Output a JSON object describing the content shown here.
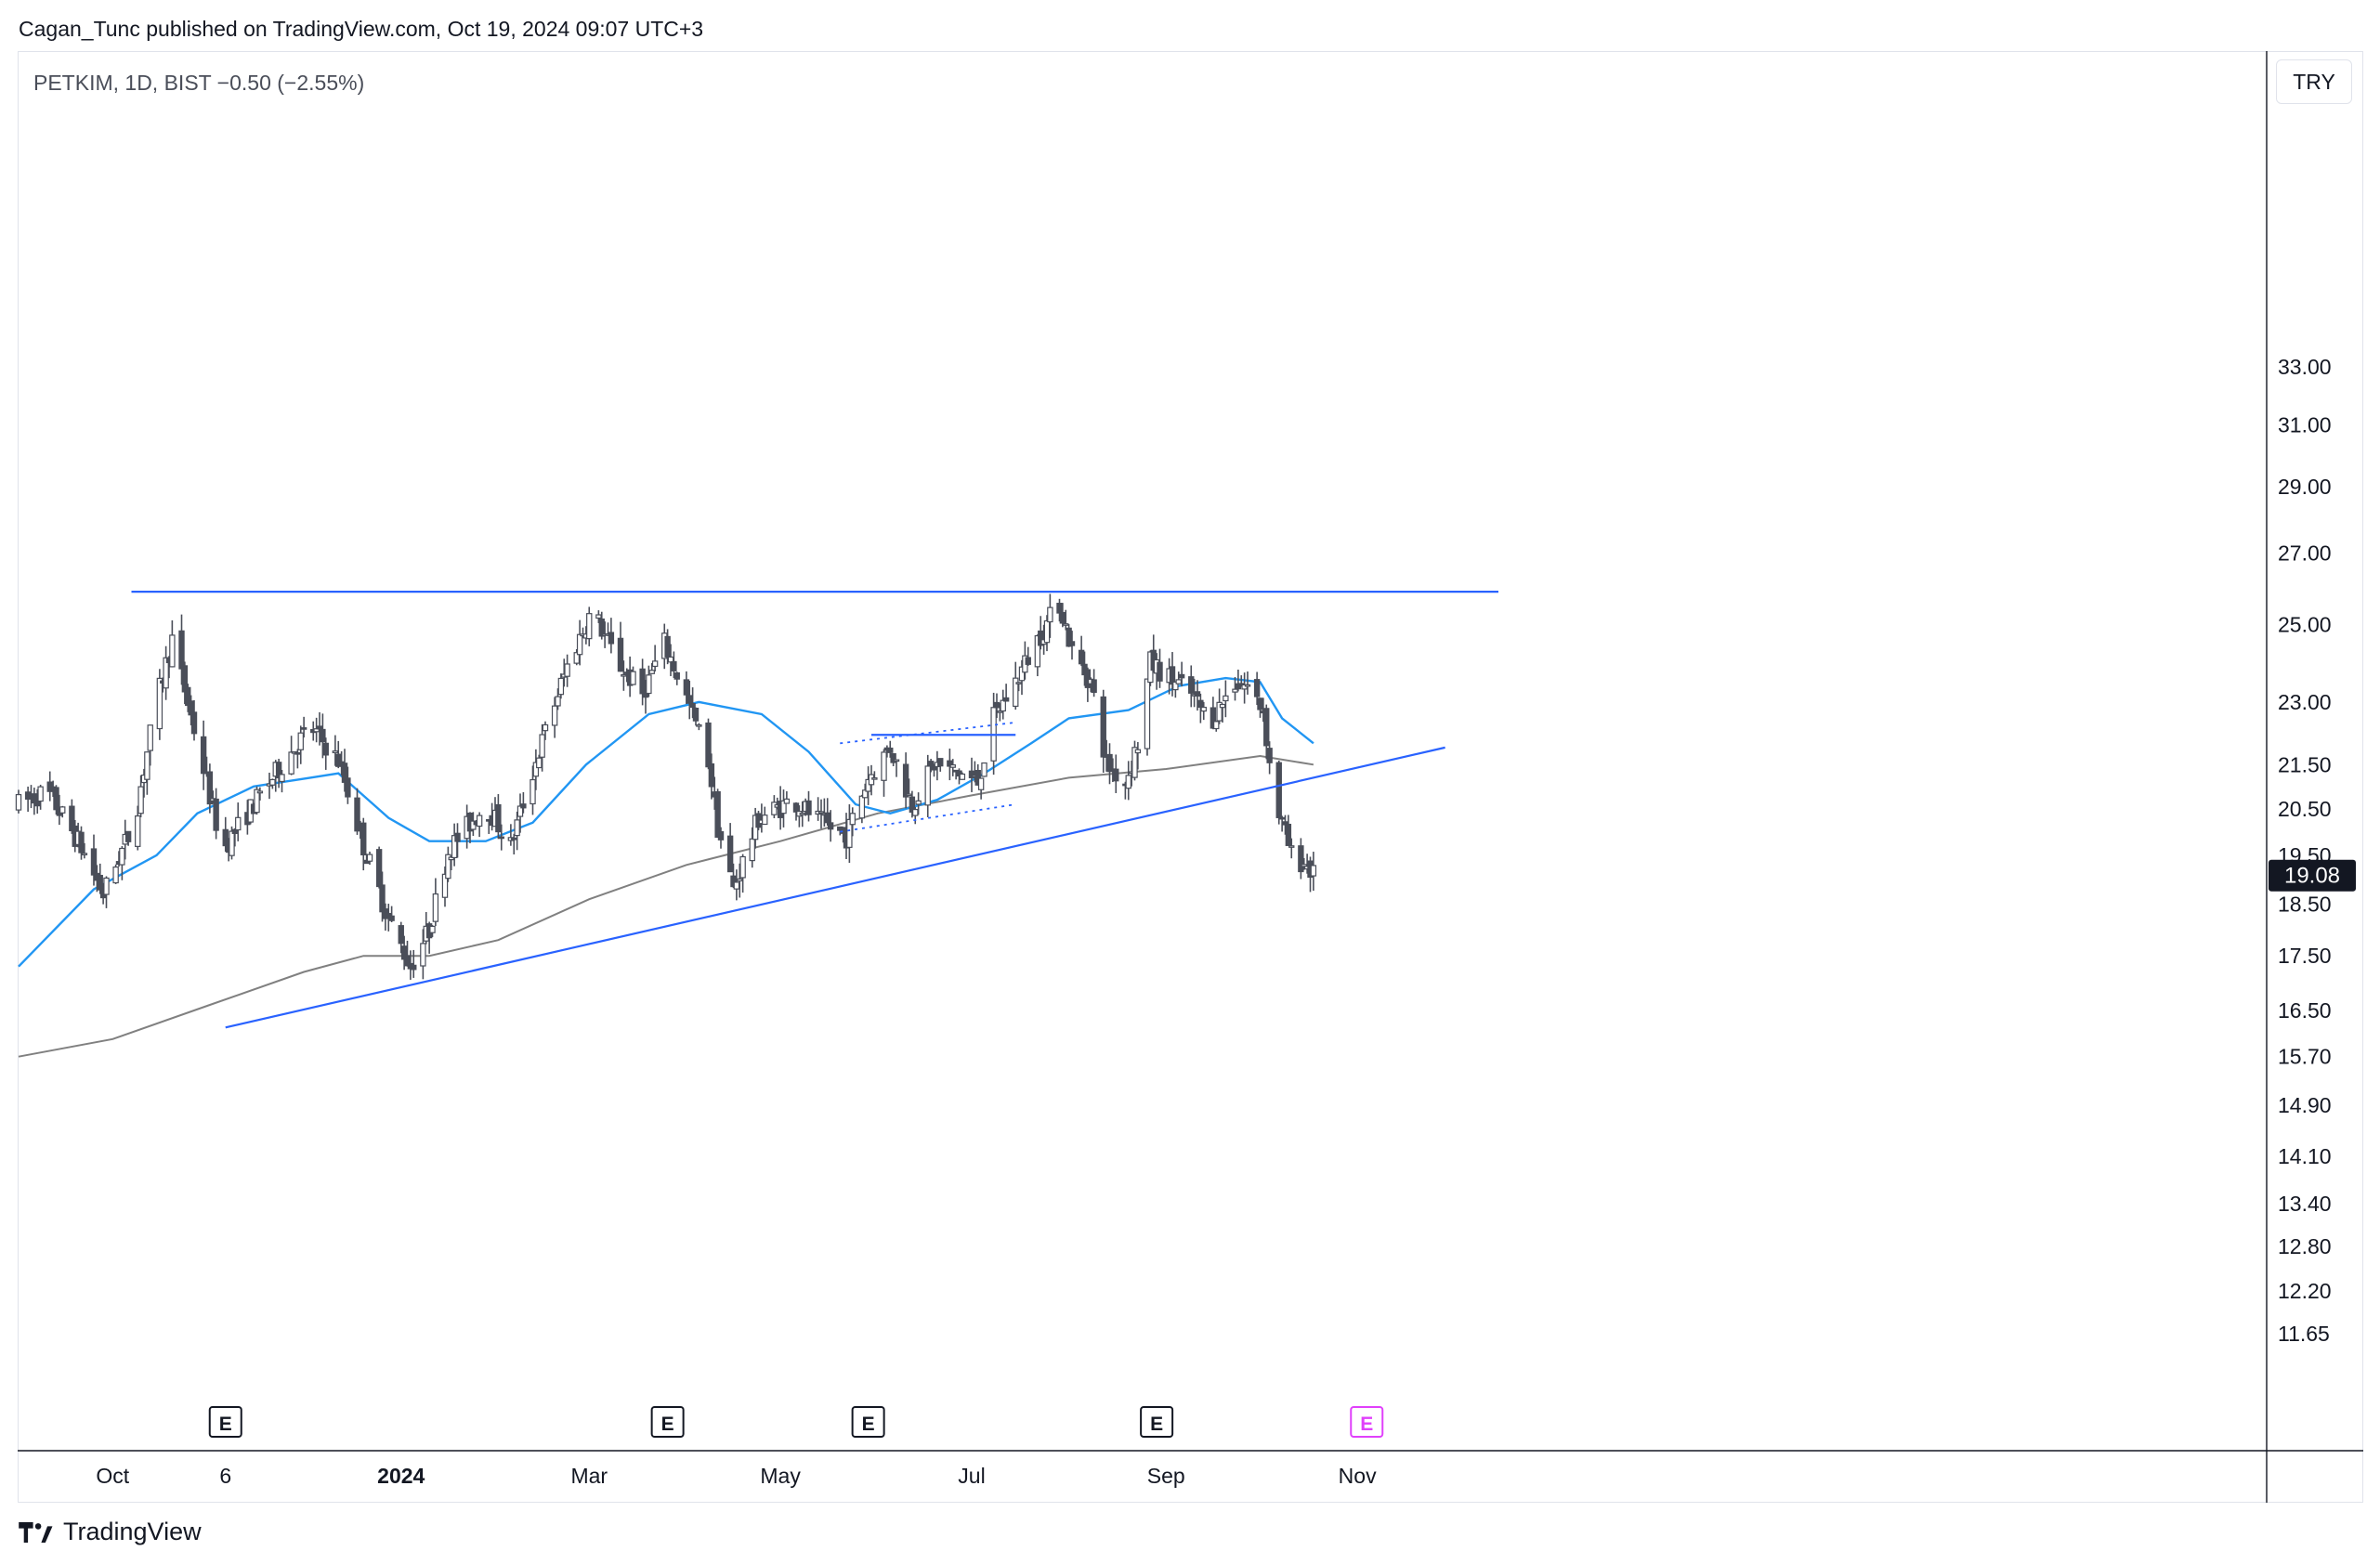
{
  "header": {
    "published_by": "Cagan_Tunc published on TradingView.com, Oct 19, 2024 09:07 UTC+3",
    "symbol_line": "PETKIM, 1D, BIST  −0.50 (−2.55%)",
    "currency_button": "TRY"
  },
  "footer": {
    "brand": "TradingView"
  },
  "colors": {
    "candle": "#4a4e59",
    "sma_fast": "#2196f3",
    "sma_slow": "#808080",
    "trendline": "#2962ff",
    "price_badge_bg": "#131722",
    "earnings_upcoming": "#e040fb",
    "axis_text": "#131722",
    "grid": "#e0e3eb"
  },
  "chart_data": {
    "type": "candlestick",
    "symbol": "PETKIM",
    "timeframe": "1D",
    "exchange": "BIST",
    "change": "−0.50 (−2.55%)",
    "last_price": "19.08",
    "y_scale": "log",
    "y_ticks": [
      "33.00",
      "31.00",
      "29.00",
      "27.00",
      "25.00",
      "23.00",
      "21.50",
      "20.50",
      "19.50",
      "18.50",
      "17.50",
      "16.50",
      "15.70",
      "14.90",
      "14.10",
      "13.40",
      "12.80",
      "12.20",
      "11.65"
    ],
    "x_labels": [
      {
        "label": "Oct",
        "date": "2023-10-01",
        "bold": false
      },
      {
        "label": "6",
        "date": "2023-11-06",
        "bold": false
      },
      {
        "label": "2024",
        "date": "2024-01-01",
        "bold": true
      },
      {
        "label": "Mar",
        "date": "2024-03-01",
        "bold": false
      },
      {
        "label": "May",
        "date": "2024-05-01",
        "bold": false
      },
      {
        "label": "Jul",
        "date": "2024-07-01",
        "bold": false
      },
      {
        "label": "Sep",
        "date": "2024-09-01",
        "bold": false
      },
      {
        "label": "Nov",
        "date": "2024-11-01",
        "bold": false
      }
    ],
    "price_path": [
      [
        "2023-09-01",
        20.6
      ],
      [
        "2023-09-10",
        20.9
      ],
      [
        "2023-09-20",
        19.8
      ],
      [
        "2023-09-28",
        18.7
      ],
      [
        "2023-10-08",
        20.2
      ],
      [
        "2023-10-15",
        23.0
      ],
      [
        "2023-10-20",
        24.6
      ],
      [
        "2023-10-28",
        22.0
      ],
      [
        "2023-11-05",
        19.6
      ],
      [
        "2023-11-15",
        20.6
      ],
      [
        "2023-11-25",
        21.6
      ],
      [
        "2023-12-03",
        22.4
      ],
      [
        "2023-12-12",
        21.6
      ],
      [
        "2023-12-20",
        19.7
      ],
      [
        "2023-12-28",
        18.2
      ],
      [
        "2024-01-04",
        17.3
      ],
      [
        "2024-01-10",
        18.0
      ],
      [
        "2024-01-16",
        19.6
      ],
      [
        "2024-01-28",
        20.6
      ],
      [
        "2024-02-05",
        19.7
      ],
      [
        "2024-02-14",
        21.8
      ],
      [
        "2024-02-23",
        23.9
      ],
      [
        "2024-03-02",
        25.4
      ],
      [
        "2024-03-10",
        24.0
      ],
      [
        "2024-03-18",
        23.2
      ],
      [
        "2024-03-25",
        24.5
      ],
      [
        "2024-04-02",
        22.9
      ],
      [
        "2024-04-08",
        21.6
      ],
      [
        "2024-04-11",
        20.1
      ],
      [
        "2024-04-16",
        18.8
      ],
      [
        "2024-04-24",
        20.3
      ],
      [
        "2024-05-05",
        20.7
      ],
      [
        "2024-05-14",
        20.2
      ],
      [
        "2024-05-22",
        19.9
      ],
      [
        "2024-05-29",
        21.2
      ],
      [
        "2024-06-05",
        21.9
      ],
      [
        "2024-06-12",
        20.6
      ],
      [
        "2024-06-19",
        21.5
      ],
      [
        "2024-06-27",
        21.3
      ],
      [
        "2024-07-03",
        21.1
      ],
      [
        "2024-07-08",
        22.6
      ],
      [
        "2024-07-15",
        23.5
      ],
      [
        "2024-07-22",
        24.6
      ],
      [
        "2024-07-29",
        25.6
      ],
      [
        "2024-08-02",
        24.3
      ],
      [
        "2024-08-08",
        23.5
      ],
      [
        "2024-08-13",
        21.5
      ],
      [
        "2024-08-19",
        21.1
      ],
      [
        "2024-08-23",
        22.0
      ],
      [
        "2024-08-27",
        24.0
      ],
      [
        "2024-09-02",
        23.6
      ],
      [
        "2024-09-09",
        23.2
      ],
      [
        "2024-09-15",
        22.5
      ],
      [
        "2024-09-23",
        23.5
      ],
      [
        "2024-09-27",
        23.4
      ],
      [
        "2024-10-02",
        22.8
      ],
      [
        "2024-10-04",
        21.5
      ],
      [
        "2024-10-07",
        20.4
      ],
      [
        "2024-10-11",
        19.5
      ],
      [
        "2024-10-16",
        19.3
      ],
      [
        "2024-10-18",
        19.08
      ]
    ],
    "sma_fast": {
      "points": [
        [
          "2023-09-01",
          17.3
        ],
        [
          "2023-09-25",
          18.8
        ],
        [
          "2023-10-15",
          19.5
        ],
        [
          "2023-10-28",
          20.4
        ],
        [
          "2023-11-15",
          21.0
        ],
        [
          "2023-12-03",
          21.2
        ],
        [
          "2023-12-12",
          21.3
        ],
        [
          "2023-12-28",
          20.3
        ],
        [
          "2024-01-10",
          19.8
        ],
        [
          "2024-01-28",
          19.8
        ],
        [
          "2024-02-12",
          20.2
        ],
        [
          "2024-02-29",
          21.5
        ],
        [
          "2024-03-20",
          22.7
        ],
        [
          "2024-04-05",
          23.0
        ],
        [
          "2024-04-25",
          22.7
        ],
        [
          "2024-05-10",
          21.8
        ],
        [
          "2024-05-25",
          20.6
        ],
        [
          "2024-06-05",
          20.4
        ],
        [
          "2024-06-20",
          20.7
        ],
        [
          "2024-07-05",
          21.3
        ],
        [
          "2024-07-20",
          22.0
        ],
        [
          "2024-08-01",
          22.6
        ],
        [
          "2024-08-20",
          22.8
        ],
        [
          "2024-09-05",
          23.4
        ],
        [
          "2024-09-20",
          23.6
        ],
        [
          "2024-10-01",
          23.5
        ],
        [
          "2024-10-08",
          22.6
        ],
        [
          "2024-10-18",
          22.0
        ]
      ]
    },
    "sma_slow": {
      "points": [
        [
          "2023-09-01",
          15.7
        ],
        [
          "2023-10-01",
          16.0
        ],
        [
          "2023-11-01",
          16.6
        ],
        [
          "2023-12-01",
          17.2
        ],
        [
          "2023-12-20",
          17.5
        ],
        [
          "2024-01-10",
          17.5
        ],
        [
          "2024-02-01",
          17.8
        ],
        [
          "2024-03-01",
          18.6
        ],
        [
          "2024-04-01",
          19.3
        ],
        [
          "2024-05-01",
          19.8
        ],
        [
          "2024-06-01",
          20.4
        ],
        [
          "2024-07-01",
          20.8
        ],
        [
          "2024-08-01",
          21.2
        ],
        [
          "2024-09-01",
          21.4
        ],
        [
          "2024-10-01",
          21.7
        ],
        [
          "2024-10-18",
          21.5
        ]
      ]
    },
    "drawings": [
      {
        "name": "resistance-line",
        "style": "solid",
        "from": [
          "2023-10-07",
          25.9
        ],
        "to": [
          "2024-12-16",
          25.9
        ]
      },
      {
        "name": "ascending-trendline",
        "style": "solid",
        "from": [
          "2023-11-06",
          16.2
        ],
        "to": [
          "2024-11-29",
          21.9
        ]
      },
      {
        "name": "flag-upper",
        "style": "dotted",
        "from": [
          "2024-05-20",
          22.0
        ],
        "to": [
          "2024-07-15",
          22.5
        ]
      },
      {
        "name": "flag-lower",
        "style": "dotted",
        "from": [
          "2024-05-20",
          20.0
        ],
        "to": [
          "2024-07-15",
          20.6
        ]
      },
      {
        "name": "flag-top-bar",
        "style": "solid",
        "from": [
          "2024-05-30",
          22.2
        ],
        "to": [
          "2024-07-15",
          22.2
        ]
      }
    ],
    "earnings": [
      {
        "label": "E",
        "date": "2023-11-06",
        "upcoming": false
      },
      {
        "label": "E",
        "date": "2024-03-26",
        "upcoming": false
      },
      {
        "label": "E",
        "date": "2024-05-29",
        "upcoming": false
      },
      {
        "label": "E",
        "date": "2024-08-29",
        "upcoming": false
      },
      {
        "label": "E",
        "date": "2024-11-04",
        "upcoming": true
      }
    ]
  }
}
